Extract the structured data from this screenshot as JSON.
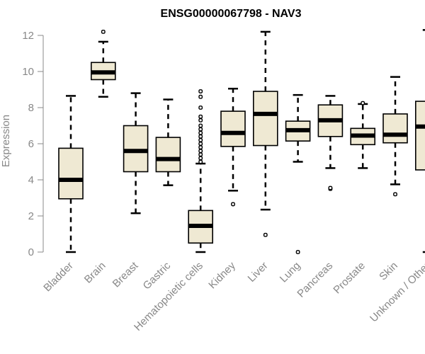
{
  "chart_data": {
    "type": "boxplot",
    "title": "ENSG00000067798 - NAV3",
    "xlabel": "",
    "ylabel": "Expression",
    "ylim": [
      0,
      12.3
    ],
    "yticks": [
      0,
      2,
      4,
      6,
      8,
      10,
      12
    ],
    "box_fill": "#efe9d3",
    "categories": [
      "Bladder",
      "Brain",
      "Breast",
      "Gastric",
      "Hematopoietic cells",
      "Kidney",
      "Liver",
      "Lung",
      "Pancreas",
      "Prostate",
      "Skin",
      "Unknown / Other"
    ],
    "boxes": [
      {
        "whisker_low": 0.0,
        "q1": 2.95,
        "median": 4.0,
        "q3": 5.75,
        "whisker_high": 8.65,
        "outliers": []
      },
      {
        "whisker_low": 8.6,
        "q1": 9.55,
        "median": 9.95,
        "q3": 10.5,
        "whisker_high": 11.65,
        "outliers": [
          12.2
        ]
      },
      {
        "whisker_low": 2.15,
        "q1": 4.45,
        "median": 5.6,
        "q3": 7.0,
        "whisker_high": 8.8,
        "outliers": []
      },
      {
        "whisker_low": 3.7,
        "q1": 4.45,
        "median": 5.15,
        "q3": 6.35,
        "whisker_high": 8.45,
        "outliers": []
      },
      {
        "whisker_low": 0.0,
        "q1": 0.5,
        "median": 1.45,
        "q3": 2.3,
        "whisker_high": 4.9,
        "outliers": [
          5.0,
          5.2,
          5.4,
          5.6,
          5.8,
          6.0,
          6.2,
          6.4,
          6.6,
          6.8,
          7.0,
          7.3,
          7.5,
          8.0,
          8.6,
          8.9
        ]
      },
      {
        "whisker_low": 3.4,
        "q1": 5.85,
        "median": 6.6,
        "q3": 7.8,
        "whisker_high": 9.05,
        "outliers": [
          2.65
        ]
      },
      {
        "whisker_low": 2.35,
        "q1": 5.9,
        "median": 7.65,
        "q3": 8.9,
        "whisker_high": 12.2,
        "outliers": [
          0.95
        ]
      },
      {
        "whisker_low": 5.0,
        "q1": 6.15,
        "median": 6.75,
        "q3": 7.25,
        "whisker_high": 8.7,
        "outliers": [
          0.0
        ]
      },
      {
        "whisker_low": 4.65,
        "q1": 6.4,
        "median": 7.3,
        "q3": 8.15,
        "whisker_high": 8.65,
        "outliers": [
          3.5,
          3.55
        ]
      },
      {
        "whisker_low": 4.65,
        "q1": 5.95,
        "median": 6.45,
        "q3": 6.85,
        "whisker_high": 8.2,
        "outliers": [
          8.25
        ]
      },
      {
        "whisker_low": 3.75,
        "q1": 6.05,
        "median": 6.5,
        "q3": 7.65,
        "whisker_high": 9.7,
        "outliers": [
          3.2
        ]
      },
      {
        "whisker_low": 0.0,
        "q1": 4.55,
        "median": 6.95,
        "q3": 8.35,
        "whisker_high": 12.3,
        "outliers": []
      }
    ]
  }
}
